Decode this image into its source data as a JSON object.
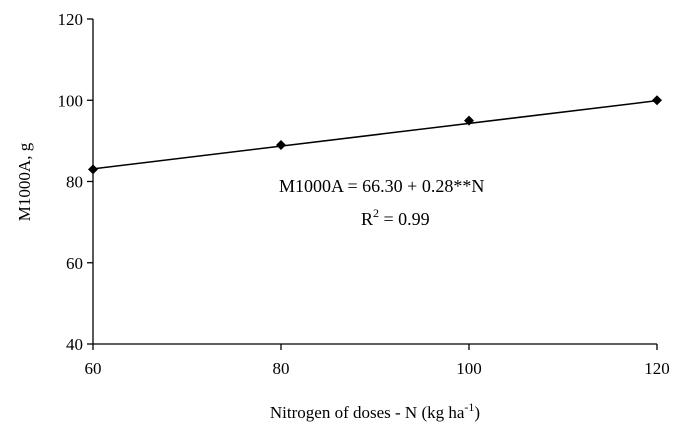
{
  "chart_data": {
    "type": "scatter",
    "x": [
      60,
      80,
      100,
      120
    ],
    "series": [
      {
        "values": [
          83,
          89,
          95,
          100
        ]
      }
    ],
    "trendline": {
      "intercept": 66.3,
      "slope": 0.28
    },
    "xlim": [
      60,
      120
    ],
    "ylim": [
      40,
      120
    ],
    "xticks": [
      60,
      80,
      100,
      120
    ],
    "yticks": [
      40,
      60,
      80,
      100,
      120
    ],
    "xlabel": {
      "main": "Nitrogen of doses - N  (kg ha",
      "sup": "-1",
      "close": ")"
    },
    "ylabel": "M1000A, g",
    "annotation": {
      "equation": "M1000A = 66.30 + 0.28**N",
      "r2_prefix": "R",
      "r2_sup": "2",
      "r2_value": " = 0.99"
    },
    "grid": false,
    "legend": "none",
    "colors": {
      "marker": "#000000",
      "line": "#000000",
      "axis": "#000000"
    }
  }
}
